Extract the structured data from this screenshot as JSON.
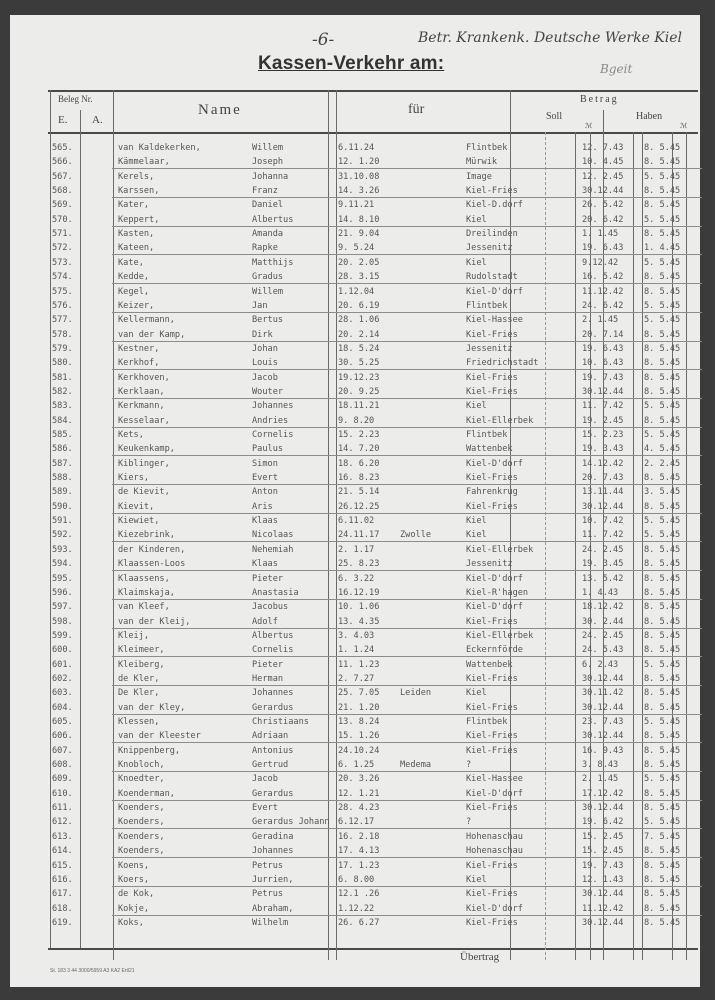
{
  "header": {
    "page_number": "-6-",
    "handwritten_note": "Betr. Krankenk. Deutsche Werke Kiel",
    "handwritten_mark": "Bgeit",
    "title": "Kassen-Verkehr am:"
  },
  "columns": {
    "beleg_nr": "Beleg Nr.",
    "e": "E.",
    "a": "A.",
    "name": "Name",
    "fuer": "für",
    "betrag": "Betrag",
    "soll": "Soll",
    "haben": "Haben",
    "pf_soll": "ℳ",
    "pf_haben": "ℳ"
  },
  "rows": [
    {
      "nr": "565.",
      "surname": "van Kaldekerken,",
      "first": "Willem",
      "date": "6.11.24",
      "remark": "",
      "place": "Flintbek",
      "soll": "12. 7.43",
      "haben": "8. 5.45"
    },
    {
      "nr": "566.",
      "surname": "Kämmelaar,",
      "first": "Joseph",
      "date": "12. 1.20",
      "remark": "",
      "place": "Mürwik",
      "soll": "10. 4.45",
      "haben": "8. 5.45"
    },
    {
      "nr": "567.",
      "surname": "Kerels,",
      "first": "Johanna",
      "date": "31.10.08",
      "remark": "",
      "place": "Image",
      "soll": "12. 2.45",
      "haben": "5. 5.45"
    },
    {
      "nr": "568.",
      "surname": "Karssen,",
      "first": "Franz",
      "date": "14. 3.26",
      "remark": "",
      "place": "Kiel-Fries",
      "soll": "30.12.44",
      "haben": "8. 5.45"
    },
    {
      "nr": "569.",
      "surname": "Kater,",
      "first": "Daniel",
      "date": "9.11.21",
      "remark": "",
      "place": "Kiel-D.dorf",
      "soll": "26. 5.42",
      "haben": "8. 5.45"
    },
    {
      "nr": "570.",
      "surname": "Keppert,",
      "first": "Albertus",
      "date": "14. 8.10",
      "remark": "",
      "place": "Kiel",
      "soll": "20. 6.42",
      "haben": "5. 5.45"
    },
    {
      "nr": "571.",
      "surname": "Kasten,",
      "first": "Amanda",
      "date": "21. 9.04",
      "remark": "",
      "place": "Dreilinden",
      "soll": "1. 1.45",
      "haben": "8. 5.45"
    },
    {
      "nr": "572.",
      "surname": "Kateen,",
      "first": "Rapke",
      "date": "9. 5.24",
      "remark": "",
      "place": "Jessenitz",
      "soll": "19. 6.43",
      "haben": "1. 4.45"
    },
    {
      "nr": "573.",
      "surname": "Kate,",
      "first": "Matthijs",
      "date": "20. 2.05",
      "remark": "",
      "place": "Kiel",
      "soll": "9.12.42",
      "haben": "5. 5.45"
    },
    {
      "nr": "574.",
      "surname": "Kedde,",
      "first": "Gradus",
      "date": "28. 3.15",
      "remark": "",
      "place": "Rudolstadt",
      "soll": "16. 5.42",
      "haben": "8. 5.45"
    },
    {
      "nr": "575.",
      "surname": "Kegel,",
      "first": "Willem",
      "date": "1.12.04",
      "remark": "",
      "place": "Kiel-D'dorf",
      "soll": "11.12.42",
      "haben": "8. 5.45"
    },
    {
      "nr": "576.",
      "surname": "Keizer,",
      "first": "Jan",
      "date": "20. 6.19",
      "remark": "",
      "place": "Flintbek",
      "soll": "24. 6.42",
      "haben": "5. 5.45"
    },
    {
      "nr": "577.",
      "surname": "Kellermann,",
      "first": "Bertus",
      "date": "28. 1.06",
      "remark": "",
      "place": "Kiel-Hassee",
      "soll": "2. 1.45",
      "haben": "5. 5.45"
    },
    {
      "nr": "578.",
      "surname": "van der Kamp,",
      "first": "Dirk",
      "date": "20. 2.14",
      "remark": "",
      "place": "Kiel-Fries",
      "soll": "20. 7.14",
      "haben": "8. 5.45"
    },
    {
      "nr": "579.",
      "surname": "Kestner,",
      "first": "Johan",
      "date": "18. 5.24",
      "remark": "",
      "place": "Jessenitz",
      "soll": "19. 6.43",
      "haben": "8. 5.45"
    },
    {
      "nr": "580.",
      "surname": "Kerkhof,",
      "first": "Louis",
      "date": "30. 5.25",
      "remark": "",
      "place": "Friedrichstadt",
      "soll": "10. 6.43",
      "haben": "8. 5.45"
    },
    {
      "nr": "581.",
      "surname": "Kerkhoven,",
      "first": "Jacob",
      "date": "19.12.23",
      "remark": "",
      "place": "Kiel-Fries",
      "soll": "19. 7.43",
      "haben": "8. 5.45"
    },
    {
      "nr": "582.",
      "surname": "Kerklaan,",
      "first": "Wouter",
      "date": "20. 9.25",
      "remark": "",
      "place": "Kiel-Fries",
      "soll": "30.12.44",
      "haben": "8. 5.45"
    },
    {
      "nr": "583.",
      "surname": "Kerkmann,",
      "first": "Johannes",
      "date": "18.11.21",
      "remark": "",
      "place": "Kiel",
      "soll": "11. 7.42",
      "haben": "5. 5.45"
    },
    {
      "nr": "584.",
      "surname": "Kesselaar,",
      "first": "Andries",
      "date": "9. 8.20",
      "remark": "",
      "place": "Kiel-Ellerbek",
      "soll": "19. 2.45",
      "haben": "8. 5.45"
    },
    {
      "nr": "585.",
      "surname": "Kets,",
      "first": "Cornelis",
      "date": "15. 2.23",
      "remark": "",
      "place": "Flintbek",
      "soll": "15. 2.23",
      "haben": "5. 5.45"
    },
    {
      "nr": "586.",
      "surname": "Keukenkamp,",
      "first": "Paulus",
      "date": "14. 7.20",
      "remark": "",
      "place": "Wattenbek",
      "soll": "19. 3.43",
      "haben": "4. 5.45"
    },
    {
      "nr": "587.",
      "surname": "Kiblinger,",
      "first": "Simon",
      "date": "18. 6.20",
      "remark": "",
      "place": "Kiel-D'dorf",
      "soll": "14.12.42",
      "haben": "2. 2.45"
    },
    {
      "nr": "588.",
      "surname": "Kiers,",
      "first": "Evert",
      "date": "16. 8.23",
      "remark": "",
      "place": "Kiel-Fries",
      "soll": "20. 7.43",
      "haben": "8. 5.45"
    },
    {
      "nr": "589.",
      "surname": "de Kievit,",
      "first": "Anton",
      "date": "21. 5.14",
      "remark": "",
      "place": "Fahrenkrug",
      "soll": "13.11.44",
      "haben": "3. 5.45"
    },
    {
      "nr": "590.",
      "surname": "Kievit,",
      "first": "Aris",
      "date": "26.12.25",
      "remark": "",
      "place": "Kiel-Fries",
      "soll": "30.12.44",
      "haben": "8. 5.45"
    },
    {
      "nr": "591.",
      "surname": "Kiewiet,",
      "first": "Klaas",
      "date": "6.11.02",
      "remark": "",
      "place": "Kiel",
      "soll": "10. 7.42",
      "haben": "5. 5.45"
    },
    {
      "nr": "592.",
      "surname": "Kiezebrink,",
      "first": "Nicolaas",
      "date": "24.11.17",
      "remark": "Zwolle",
      "place": "Kiel",
      "soll": "11. 7.42",
      "haben": "5. 5.45"
    },
    {
      "nr": "593.",
      "surname": "der Kinderen,",
      "first": "Nehemiah",
      "date": "2. 1.17",
      "remark": "",
      "place": "Kiel-Ellerbek",
      "soll": "24. 2.45",
      "haben": "8. 5.45"
    },
    {
      "nr": "594.",
      "surname": "Klaassen-Loos",
      "first": "Klaas",
      "date": "25. 8.23",
      "remark": "",
      "place": "Jessenitz",
      "soll": "19. 3.45",
      "haben": "8. 5.45"
    },
    {
      "nr": "595.",
      "surname": "Klaassens,",
      "first": "Pieter",
      "date": "6. 3.22",
      "remark": "",
      "place": "Kiel-D'dorf",
      "soll": "13. 5.42",
      "haben": "8. 5.45"
    },
    {
      "nr": "596.",
      "surname": "Klaimskaja,",
      "first": "Anastasia",
      "date": "16.12.19",
      "remark": "",
      "place": "Kiel-R'hagen",
      "soll": "1. 4.43",
      "haben": "8. 5.45"
    },
    {
      "nr": "597.",
      "surname": "van Kleef,",
      "first": "Jacobus",
      "date": "10. 1.06",
      "remark": "",
      "place": "Kiel-D'dorf",
      "soll": "18.12.42",
      "haben": "8. 5.45"
    },
    {
      "nr": "598.",
      "surname": "van der Kleij,",
      "first": "Adolf",
      "date": "13. 4.35",
      "remark": "",
      "place": "Kiel-Fries",
      "soll": "30. 2.44",
      "haben": "8. 5.45"
    },
    {
      "nr": "599.",
      "surname": "Kleij,",
      "first": "Albertus",
      "date": "3. 4.03",
      "remark": "",
      "place": "Kiel-Ellerbek",
      "soll": "24. 2.45",
      "haben": "8. 5.45"
    },
    {
      "nr": "600.",
      "surname": "Kleimeer,",
      "first": "Cornelis",
      "date": "1. 1.24",
      "remark": "",
      "place": "Eckernförde",
      "soll": "24. 5.43",
      "haben": "8. 5.45"
    },
    {
      "nr": "601.",
      "surname": "Kleiberg,",
      "first": "Pieter",
      "date": "11. 1.23",
      "remark": "",
      "place": "Wattenbek",
      "soll": "6. 2.43",
      "haben": "5. 5.45"
    },
    {
      "nr": "602.",
      "surname": "de Kler,",
      "first": "Herman",
      "date": "2. 7.27",
      "remark": "",
      "place": "Kiel-Fries",
      "soll": "30.12.44",
      "haben": "8. 5.45"
    },
    {
      "nr": "603.",
      "surname": "De Kler,",
      "first": "Johannes",
      "date": "25. 7.05",
      "remark": "Leiden",
      "place": "Kiel",
      "soll": "30.11.42",
      "haben": "8. 5.45"
    },
    {
      "nr": "604.",
      "surname": "van der Kley,",
      "first": "Gerardus",
      "date": "21. 1.20",
      "remark": "",
      "place": "Kiel-Fries",
      "soll": "30.12.44",
      "haben": "8. 5.45"
    },
    {
      "nr": "605.",
      "surname": "Klessen,",
      "first": "Christiaans",
      "date": "13. 8.24",
      "remark": "",
      "place": "Flintbek",
      "soll": "23. 7.43",
      "haben": "5. 5.45"
    },
    {
      "nr": "606.",
      "surname": "van der Kleester",
      "first": "Adriaan",
      "date": "15. 1.26",
      "remark": "",
      "place": "Kiel-Fries",
      "soll": "30.12.44",
      "haben": "8. 5.45"
    },
    {
      "nr": "607.",
      "surname": "Knippenberg,",
      "first": "Antonius",
      "date": "24.10.24",
      "remark": "",
      "place": "Kiel-Fries",
      "soll": "16. 9.43",
      "haben": "8. 5.45"
    },
    {
      "nr": "608.",
      "surname": "Knobloch,",
      "first": "Gertrud",
      "date": "6. 1.25",
      "remark": "Medema",
      "place": "?",
      "soll": "3. 8.43",
      "haben": "8. 5.45"
    },
    {
      "nr": "609.",
      "surname": "Knoedter,",
      "first": "Jacob",
      "date": "20. 3.26",
      "remark": "",
      "place": "Kiel-Hassee",
      "soll": "2. 1.45",
      "haben": "5. 5.45"
    },
    {
      "nr": "610.",
      "surname": "Koenderman,",
      "first": "Gerardus",
      "date": "12. 1.21",
      "remark": "",
      "place": "Kiel-D'dorf",
      "soll": "17.12.42",
      "haben": "8. 5.45"
    },
    {
      "nr": "611.",
      "surname": "Koenders,",
      "first": "Evert",
      "date": "28. 4.23",
      "remark": "",
      "place": "Kiel-Fries",
      "soll": "30.12.44",
      "haben": "8. 5.45"
    },
    {
      "nr": "612.",
      "surname": "Koenders,",
      "first": "Gerardus Johann",
      "date": "6.12.17",
      "remark": "",
      "place": "?",
      "soll": "19. 6.42",
      "haben": "5. 5.45"
    },
    {
      "nr": "613.",
      "surname": "Koenders,",
      "first": "Geradina",
      "date": "16. 2.18",
      "remark": "",
      "place": "Hohenaschau",
      "soll": "15. 2.45",
      "haben": "7. 5.45"
    },
    {
      "nr": "614.",
      "surname": "Koenders,",
      "first": "Johannes",
      "date": "17. 4.13",
      "remark": "",
      "place": "Hohenaschau",
      "soll": "15. 2.45",
      "haben": "8. 5.45"
    },
    {
      "nr": "615.",
      "surname": "Koens,",
      "first": "Petrus",
      "date": "17. 1.23",
      "remark": "",
      "place": "Kiel-Fries",
      "soll": "19. 7.43",
      "haben": "8. 5.45"
    },
    {
      "nr": "616.",
      "surname": "Koers,",
      "first": "Jurrien,",
      "date": "6. 8.00",
      "remark": "",
      "place": "Kiel",
      "soll": "12. 1.43",
      "haben": "8. 5.45"
    },
    {
      "nr": "617.",
      "surname": "de Kok,",
      "first": "Petrus",
      "date": "12.1 .26",
      "remark": "",
      "place": "Kiel-Fries",
      "soll": "30.12.44",
      "haben": "8. 5.45"
    },
    {
      "nr": "618.",
      "surname": "Kokje,",
      "first": "Abraham,",
      "date": "1.12.22",
      "remark": "",
      "place": "Kiel-D'dorf",
      "soll": "11.12.42",
      "haben": "8. 5.45"
    },
    {
      "nr": "619.",
      "surname": "Koks,",
      "first": "Wilhelm",
      "date": "26. 6.27",
      "remark": "",
      "place": "Kiel-Fries",
      "soll": "30.12.44",
      "haben": "8. 5.45"
    }
  ],
  "footer": {
    "carry_over": "Übertrag",
    "form_code": "St. 183 3 44 3000/5959 A3 KA2 Ertl21"
  }
}
